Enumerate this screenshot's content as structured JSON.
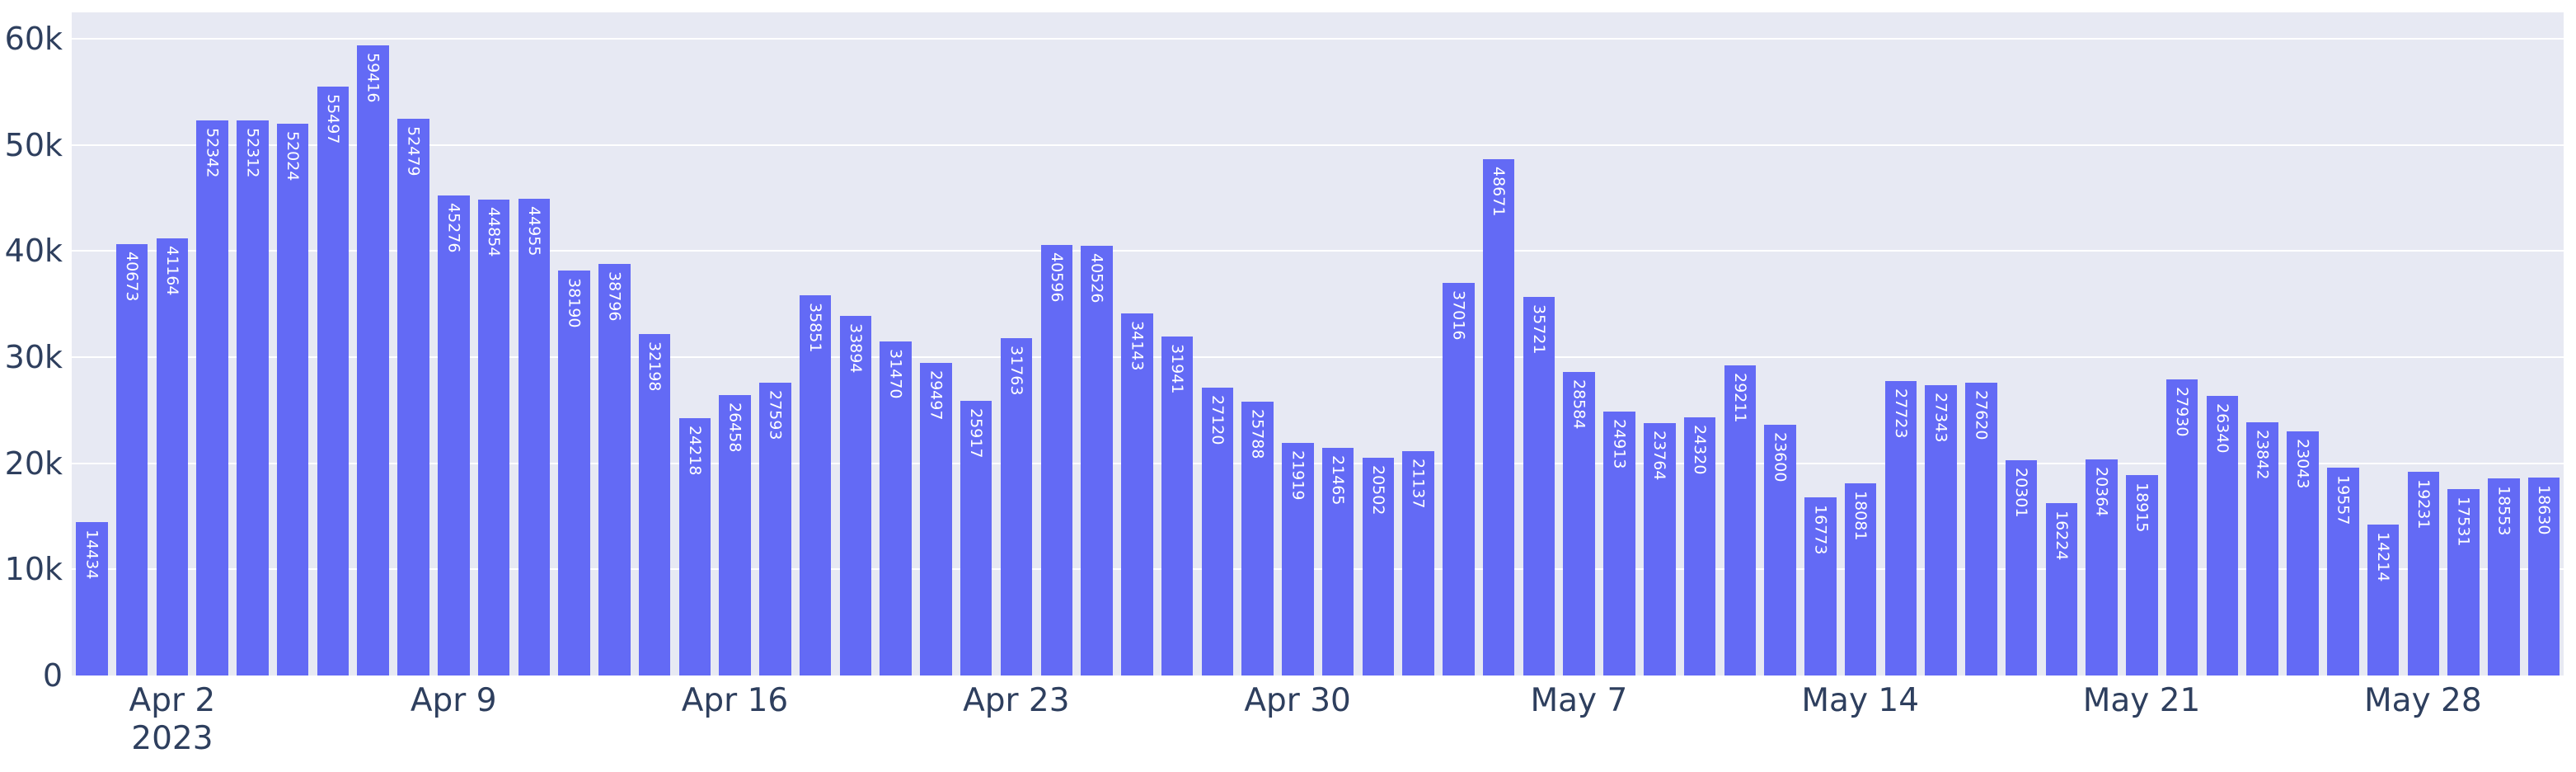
{
  "chart_data": {
    "type": "bar",
    "title": "",
    "xlabel": "",
    "ylabel": "",
    "grid": true,
    "legend": null,
    "ylim": [
      0,
      62500
    ],
    "bar_color": "#636AF5",
    "plot_bg_color": "#E7E9F3",
    "grid_color": "#FFFFFF",
    "axis_text_color": "#2E3F5E",
    "bar_label_color": "#FFFFFF",
    "x": [
      "2023-03-31",
      "2023-04-01",
      "2023-04-02",
      "2023-04-03",
      "2023-04-04",
      "2023-04-05",
      "2023-04-06",
      "2023-04-07",
      "2023-04-08",
      "2023-04-09",
      "2023-04-10",
      "2023-04-11",
      "2023-04-12",
      "2023-04-13",
      "2023-04-14",
      "2023-04-15",
      "2023-04-16",
      "2023-04-17",
      "2023-04-18",
      "2023-04-19",
      "2023-04-20",
      "2023-04-21",
      "2023-04-22",
      "2023-04-23",
      "2023-04-24",
      "2023-04-25",
      "2023-04-26",
      "2023-04-27",
      "2023-04-28",
      "2023-04-29",
      "2023-04-30",
      "2023-05-01",
      "2023-05-02",
      "2023-05-03",
      "2023-05-04",
      "2023-05-05",
      "2023-05-06",
      "2023-05-07",
      "2023-05-08",
      "2023-05-09",
      "2023-05-10",
      "2023-05-11",
      "2023-05-12",
      "2023-05-13",
      "2023-05-14",
      "2023-05-15",
      "2023-05-16",
      "2023-05-17",
      "2023-05-18",
      "2023-05-19",
      "2023-05-20",
      "2023-05-21",
      "2023-05-22",
      "2023-05-23",
      "2023-05-24",
      "2023-05-25",
      "2023-05-26",
      "2023-05-27",
      "2023-05-28",
      "2023-05-29",
      "2023-05-30",
      "2023-05-31"
    ],
    "values": [
      14434,
      40673,
      41164,
      52342,
      52312,
      52024,
      55497,
      59416,
      52479,
      45276,
      44854,
      44955,
      38190,
      38796,
      32198,
      24218,
      26458,
      27593,
      35851,
      33894,
      31470,
      29497,
      25917,
      31763,
      40596,
      40526,
      34143,
      31941,
      27120,
      25788,
      21919,
      21465,
      20502,
      21137,
      37016,
      48671,
      35721,
      28584,
      24913,
      23764,
      24320,
      29211,
      23600,
      16773,
      18081,
      27723,
      27343,
      27620,
      20301,
      16224,
      20364,
      18915,
      27930,
      26340,
      23842,
      23043,
      19557,
      14214,
      19231,
      17531,
      18553,
      18630
    ],
    "yticks": [
      {
        "value": 0,
        "label": "0"
      },
      {
        "value": 10000,
        "label": "10k"
      },
      {
        "value": 20000,
        "label": "20k"
      },
      {
        "value": 30000,
        "label": "30k"
      },
      {
        "value": 40000,
        "label": "40k"
      },
      {
        "value": 50000,
        "label": "50k"
      },
      {
        "value": 60000,
        "label": "60k"
      }
    ],
    "xticks": [
      {
        "index": 2,
        "label": "Apr 2",
        "sublabel": "2023"
      },
      {
        "index": 9,
        "label": "Apr 9",
        "sublabel": ""
      },
      {
        "index": 16,
        "label": "Apr 16",
        "sublabel": ""
      },
      {
        "index": 23,
        "label": "Apr 23",
        "sublabel": ""
      },
      {
        "index": 30,
        "label": "Apr 30",
        "sublabel": ""
      },
      {
        "index": 37,
        "label": "May 7",
        "sublabel": ""
      },
      {
        "index": 44,
        "label": "May 14",
        "sublabel": ""
      },
      {
        "index": 51,
        "label": "May 21",
        "sublabel": ""
      },
      {
        "index": 58,
        "label": "May 28",
        "sublabel": ""
      }
    ]
  }
}
